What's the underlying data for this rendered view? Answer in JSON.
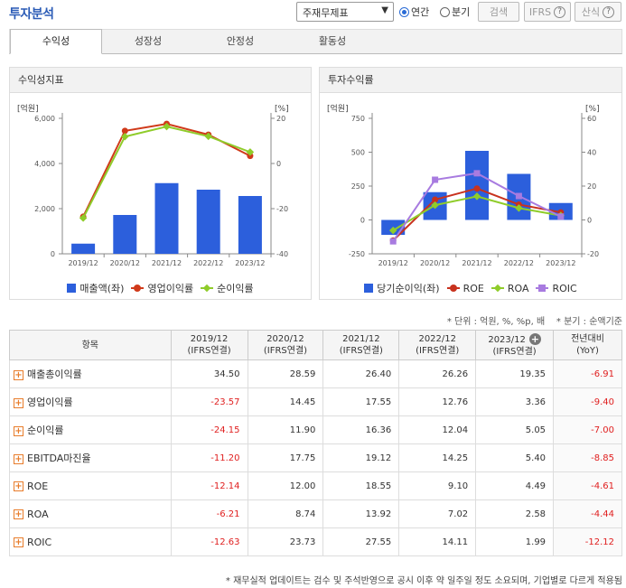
{
  "header": {
    "title": "투자분석",
    "select_value": "주재무제표",
    "radio_annual": "연간",
    "radio_quarter": "분기",
    "search_label": "검색",
    "ifrs_label": "IFRS",
    "formula_label": "산식",
    "help_glyph": "?"
  },
  "tabs": [
    {
      "label": "수익성"
    },
    {
      "label": "성장성"
    },
    {
      "label": "안정성"
    },
    {
      "label": "활동성"
    }
  ],
  "left_panel": {
    "title": "수익성지표",
    "left_unit": "[억원]",
    "right_unit": "[%]",
    "legend": [
      "매출액(좌)",
      "영업이익률",
      "순이익률"
    ]
  },
  "right_panel": {
    "title": "투자수익률",
    "left_unit": "[억원]",
    "right_unit": "[%]",
    "legend": [
      "당기순이익(좌)",
      "ROE",
      "ROA",
      "ROIC"
    ]
  },
  "colors": {
    "bar": "#2c5fdc",
    "op_margin": "#d03a1a",
    "net_margin": "#8fcc2a",
    "roe": "#c8321e",
    "roa": "#8fcc2a",
    "roic": "#a87be0",
    "negative": "#e02020"
  },
  "chart_data": [
    {
      "type": "bar",
      "categories": [
        "2019/12",
        "2020/12",
        "2021/12",
        "2022/12",
        "2023/12"
      ],
      "y_left_ticks": [
        "6,000",
        "4,000",
        "2,000",
        "0"
      ],
      "y_right_ticks": [
        "20",
        "0",
        "-20",
        "-40"
      ],
      "ylim_left": [
        0,
        6000
      ],
      "ylim_right": [
        -40,
        20
      ],
      "series": [
        {
          "name": "매출액(좌)",
          "kind": "bar",
          "axis": "left",
          "values": [
            450,
            1720,
            3130,
            2840,
            2560
          ]
        },
        {
          "name": "영업이익률",
          "kind": "line",
          "axis": "right",
          "values": [
            -23.57,
            14.45,
            17.55,
            12.76,
            3.36
          ]
        },
        {
          "name": "순이익률",
          "kind": "line",
          "axis": "right",
          "values": [
            -24.15,
            11.9,
            16.36,
            12.04,
            5.05
          ]
        }
      ]
    },
    {
      "type": "bar",
      "categories": [
        "2019/12",
        "2020/12",
        "2021/12",
        "2022/12",
        "2023/12"
      ],
      "y_left_ticks": [
        "750",
        "500",
        "250",
        "0",
        "-250"
      ],
      "y_right_ticks": [
        "60",
        "40",
        "20",
        "0",
        "-20"
      ],
      "ylim_left": [
        -250,
        750
      ],
      "ylim_right": [
        -20,
        60
      ],
      "series": [
        {
          "name": "당기순이익(좌)",
          "kind": "bar",
          "axis": "left",
          "values": [
            -110,
            205,
            510,
            340,
            125
          ]
        },
        {
          "name": "ROE",
          "kind": "line",
          "axis": "right",
          "values": [
            -12.14,
            12.0,
            18.55,
            9.1,
            4.49
          ]
        },
        {
          "name": "ROA",
          "kind": "line",
          "axis": "right",
          "values": [
            -6.21,
            8.74,
            13.92,
            7.02,
            2.58
          ]
        },
        {
          "name": "ROIC",
          "kind": "line",
          "axis": "right",
          "values": [
            -12.63,
            23.73,
            27.55,
            14.11,
            1.99
          ]
        }
      ]
    }
  ],
  "notes": {
    "unit": "* 단위 : 억원, %, %p, 배",
    "quarter": "* 분기 : 순액기준"
  },
  "table": {
    "header_item": "항목",
    "columns": [
      {
        "year": "2019/12",
        "basis": "(IFRS연결)"
      },
      {
        "year": "2020/12",
        "basis": "(IFRS연결)"
      },
      {
        "year": "2021/12",
        "basis": "(IFRS연결)"
      },
      {
        "year": "2022/12",
        "basis": "(IFRS연결)"
      },
      {
        "year": "2023/12",
        "basis": "(IFRS연결)"
      }
    ],
    "yoy_header": "전년대비",
    "yoy_sub": "(YoY)",
    "plus_glyph": "+",
    "rows": [
      {
        "label": "매출총이익률",
        "values": [
          "34.50",
          "28.59",
          "26.40",
          "26.26",
          "19.35"
        ],
        "yoy": "-6.91"
      },
      {
        "label": "영업이익률",
        "values": [
          "-23.57",
          "14.45",
          "17.55",
          "12.76",
          "3.36"
        ],
        "yoy": "-9.40"
      },
      {
        "label": "순이익률",
        "values": [
          "-24.15",
          "11.90",
          "16.36",
          "12.04",
          "5.05"
        ],
        "yoy": "-7.00"
      },
      {
        "label": "EBITDA마진율",
        "values": [
          "-11.20",
          "17.75",
          "19.12",
          "14.25",
          "5.40"
        ],
        "yoy": "-8.85"
      },
      {
        "label": "ROE",
        "values": [
          "-12.14",
          "12.00",
          "18.55",
          "9.10",
          "4.49"
        ],
        "yoy": "-4.61"
      },
      {
        "label": "ROA",
        "values": [
          "-6.21",
          "8.74",
          "13.92",
          "7.02",
          "2.58"
        ],
        "yoy": "-4.44"
      },
      {
        "label": "ROIC",
        "values": [
          "-12.63",
          "23.73",
          "27.55",
          "14.11",
          "1.99"
        ],
        "yoy": "-12.12"
      }
    ]
  },
  "footnote": "* 재무실적 업데이트는 검수 및 주석반영으로 공시 이후 약 일주일 정도 소요되며, 기업별로 다르게 적용됨"
}
